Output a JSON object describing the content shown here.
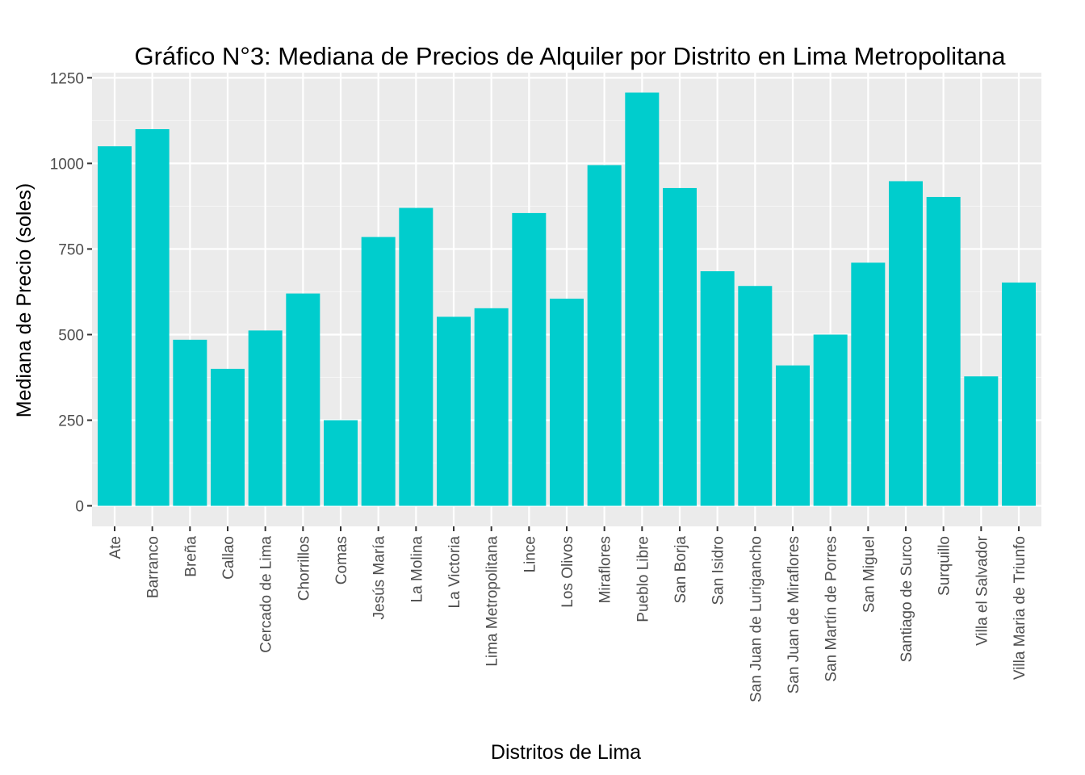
{
  "chart_data": {
    "type": "bar",
    "title": "Gráfico N°3: Mediana de Precios de Alquiler por Distrito en Lima Metropolitana",
    "xlabel": "Distritos de Lima",
    "ylabel": "Mediana de Precio (soles)",
    "categories": [
      "Ate",
      "Barranco",
      "Breña",
      "Callao",
      "Cercado de Lima",
      "Chorrillos",
      "Comas",
      "Jesús María",
      "La Molina",
      "La Victoria",
      "Lima Metropolitana",
      "Lince",
      "Los Olivos",
      "Miraflores",
      "Pueblo Libre",
      "San Borja",
      "San Isidro",
      "San Juan de Lurigancho",
      "San Juan de Miraflores",
      "San Martín de Porres",
      "San Miguel",
      "Santiago de Surco",
      "Surquillo",
      "Villa el Salvador",
      "Villa Maria de Triunfo"
    ],
    "values": [
      1050,
      1100,
      485,
      400,
      512,
      620,
      250,
      785,
      870,
      552,
      577,
      855,
      605,
      995,
      1207,
      928,
      685,
      642,
      410,
      500,
      710,
      948,
      902,
      378,
      652
    ],
    "yticks": [
      0,
      250,
      500,
      750,
      1000,
      1250
    ],
    "ylim": [
      -60,
      1265
    ],
    "grid": true,
    "legend": "none",
    "colors": {
      "bar": "#00CDCD",
      "panel": "#EBEBEB",
      "grid_major": "#FFFFFF",
      "grid_minor": "#F5F5F5",
      "tick_text": "#4D4D4D",
      "tick_mark": "#333333"
    }
  }
}
